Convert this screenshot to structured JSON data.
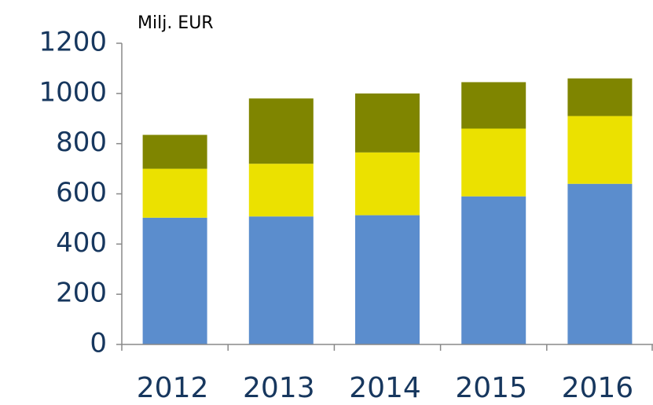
{
  "chart_data": {
    "type": "stacked_bar",
    "title": "Milj. EUR",
    "categories": [
      "2012",
      "2013",
      "2014",
      "2015",
      "2016"
    ],
    "series": [
      {
        "color": "#5b8dcd",
        "values": [
          505,
          510,
          515,
          590,
          640
        ]
      },
      {
        "color": "#ebe100",
        "values": [
          195,
          210,
          250,
          270,
          270
        ]
      },
      {
        "color": "#7f8500",
        "values": [
          135,
          260,
          235,
          185,
          150
        ]
      }
    ],
    "ylim": [
      0,
      1200
    ],
    "yticks": [
      0,
      200,
      400,
      600,
      800,
      1000,
      1200
    ],
    "grid": false
  }
}
